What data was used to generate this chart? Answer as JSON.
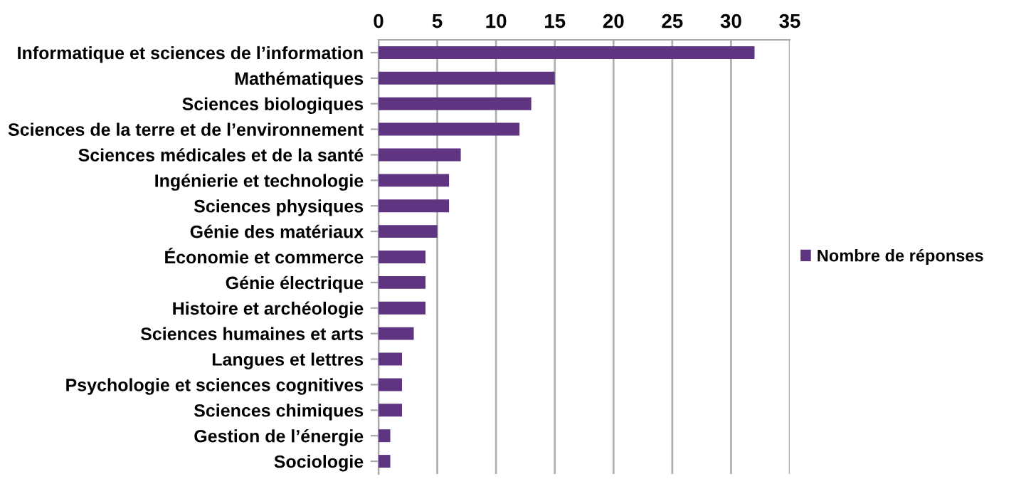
{
  "chart_data": {
    "type": "bar",
    "orientation": "horizontal",
    "categories": [
      "Informatique et sciences de l’information",
      "Mathématiques",
      "Sciences biologiques",
      "Sciences de la terre et de l’environnement",
      "Sciences médicales et de la santé",
      "Ingénierie et technologie",
      "Sciences physiques",
      "Génie des matériaux",
      "Économie et commerce",
      "Génie électrique",
      "Histoire et archéologie",
      "Sciences humaines et arts",
      "Langues et lettres",
      "Psychologie et sciences cognitives",
      "Sciences chimiques",
      "Gestion de l’énergie",
      "Sociologie"
    ],
    "series": [
      {
        "name": "Nombre de réponses",
        "color": "#5f3480",
        "values": [
          32,
          15,
          13,
          12,
          7,
          6,
          6,
          5,
          4,
          4,
          4,
          3,
          2,
          2,
          2,
          1,
          1
        ]
      }
    ],
    "xlim": [
      0,
      35
    ],
    "xticks": [
      0,
      5,
      10,
      15,
      20,
      25,
      30,
      35
    ],
    "grid": "x",
    "legend": "right"
  }
}
